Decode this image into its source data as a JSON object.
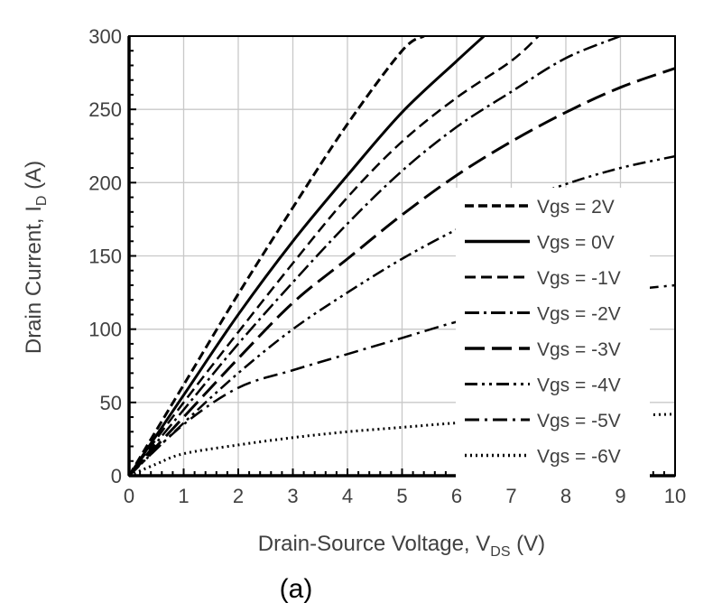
{
  "chart_data": {
    "type": "line",
    "title": "",
    "xlabel": {
      "main": "Drain-Source Voltage, V",
      "sub": "DS",
      "unit": " (V)"
    },
    "ylabel": {
      "main": "Drain Current, I",
      "sub": "D",
      "unit": " (A)"
    },
    "xlim": [
      0,
      10
    ],
    "ylim": [
      0,
      300
    ],
    "xticks": [
      0,
      1,
      2,
      3,
      4,
      5,
      6,
      7,
      8,
      9,
      10
    ],
    "yticks": [
      0,
      50,
      100,
      150,
      200,
      250,
      300
    ],
    "grid": true,
    "legend_position": "right",
    "panel_label": "(a)",
    "series": [
      {
        "name": "Vgs = 2V",
        "dash": "10,5",
        "width": 3,
        "x": [
          0,
          1,
          2,
          3,
          4,
          5,
          5.4
        ],
        "y": [
          0,
          62,
          124,
          183,
          240,
          290,
          300
        ]
      },
      {
        "name": "Vgs = 0V",
        "dash": "",
        "width": 3,
        "x": [
          0,
          1,
          2,
          3,
          4,
          5,
          6,
          6.5
        ],
        "y": [
          0,
          55,
          110,
          160,
          205,
          248,
          283,
          300
        ]
      },
      {
        "name": "Vgs = -1V",
        "dash": "12,6",
        "width": 2.5,
        "x": [
          0,
          1,
          2,
          3,
          4,
          5,
          6,
          7,
          7.5
        ],
        "y": [
          0,
          50,
          98,
          145,
          190,
          228,
          258,
          283,
          300
        ]
      },
      {
        "name": "Vgs = -2V",
        "dash": "16,5,3,5",
        "width": 2.5,
        "x": [
          0,
          1,
          2,
          3,
          4,
          5,
          6,
          7,
          8,
          9
        ],
        "y": [
          0,
          45,
          90,
          132,
          172,
          208,
          238,
          262,
          285,
          300
        ]
      },
      {
        "name": "Vgs = -3V",
        "dash": "22,8",
        "width": 3,
        "x": [
          0,
          1,
          2,
          3,
          4,
          5,
          6,
          7,
          8,
          9,
          10
        ],
        "y": [
          0,
          40,
          80,
          118,
          148,
          178,
          205,
          228,
          248,
          265,
          278
        ]
      },
      {
        "name": "Vgs = -4V",
        "dash": "14,5,3,5,3,5",
        "width": 2.5,
        "x": [
          0,
          1,
          2,
          3,
          4,
          5,
          6,
          7,
          8,
          9,
          10
        ],
        "y": [
          0,
          36,
          70,
          100,
          125,
          148,
          168,
          185,
          199,
          210,
          218
        ]
      },
      {
        "name": "Vgs = -5V",
        "dash": "16,6,3,6",
        "width": 2.5,
        "x": [
          0,
          1,
          2,
          3,
          4,
          5,
          6,
          7,
          8,
          9,
          10
        ],
        "y": [
          0,
          35,
          60,
          72,
          83,
          94,
          105,
          113,
          120,
          126,
          130
        ]
      },
      {
        "name": "Vgs = -6V",
        "dash": "2,4",
        "width": 3,
        "x": [
          0,
          0.5,
          1,
          2,
          3,
          4,
          5,
          6,
          7,
          8,
          9,
          10
        ],
        "y": [
          0,
          8,
          15,
          21,
          26,
          30,
          33,
          36,
          38,
          40,
          41,
          42
        ]
      }
    ]
  }
}
